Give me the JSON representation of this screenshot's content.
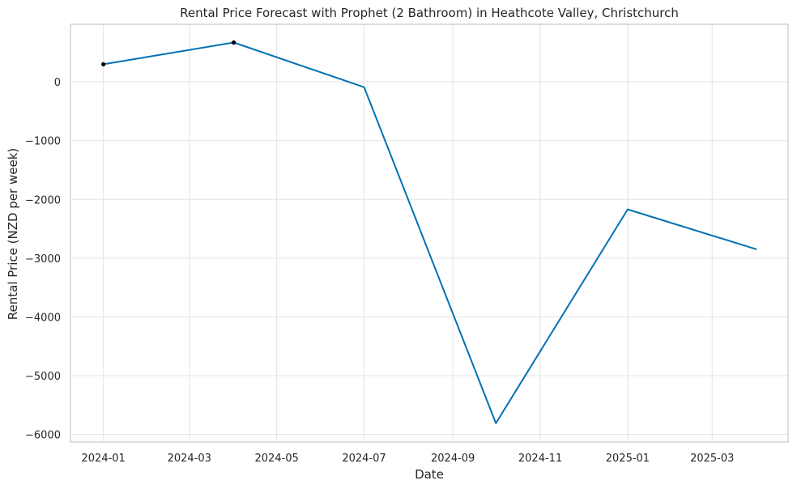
{
  "chart_data": {
    "type": "line",
    "title": "Rental Price Forecast with Prophet (2 Bathroom) in Heathcote Valley, Christchurch",
    "xlabel": "Date",
    "ylabel": "Rental Price (NZD per week)",
    "x_ticks": [
      "2024-01",
      "2024-03",
      "2024-05",
      "2024-07",
      "2024-09",
      "2024-11",
      "2025-01",
      "2025-03"
    ],
    "y_ticks": [
      0,
      -1000,
      -2000,
      -3000,
      -4000,
      -5000,
      -6000
    ],
    "y_tick_labels": [
      "0",
      "−1000",
      "−2000",
      "−3000",
      "−4000",
      "−5000",
      "−6000"
    ],
    "xlim": [
      "2023-12-09",
      "2025-04-23"
    ],
    "ylim": [
      -6130,
      980
    ],
    "grid": true,
    "series": [
      {
        "color": "#0072b2",
        "points": [
          {
            "x": "2024-01-01",
            "y": 300
          },
          {
            "x": "2024-04-01",
            "y": 670
          },
          {
            "x": "2024-07-01",
            "y": -90
          },
          {
            "x": "2024-10-01",
            "y": -5810
          },
          {
            "x": "2025-01-01",
            "y": -2170
          },
          {
            "x": "2025-04-01",
            "y": -2850
          }
        ]
      }
    ],
    "observed": {
      "color": "#000000",
      "points": [
        {
          "x": "2024-01-01",
          "y": 300
        },
        {
          "x": "2024-04-01",
          "y": 670
        }
      ]
    }
  }
}
